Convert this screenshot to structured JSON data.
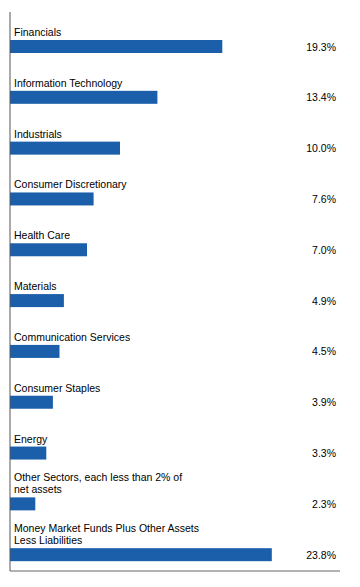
{
  "chart_data": {
    "type": "bar",
    "orientation": "horizontal",
    "categories": [
      "Financials",
      "Information Technology",
      "Industrials",
      "Consumer Discretionary",
      "Health Care",
      "Materials",
      "Communication Services",
      "Consumer Staples",
      "Energy",
      "Other Sectors, each less than 2% of\nnet assets",
      "Money Market Funds Plus Other Assets\nLess Liabilities"
    ],
    "values": [
      19.3,
      13.4,
      10.0,
      7.6,
      7.0,
      4.9,
      4.5,
      3.9,
      3.3,
      2.3,
      23.8
    ],
    "value_labels": [
      "19.3%",
      "13.4%",
      "10.0%",
      "7.6%",
      "7.0%",
      "4.9%",
      "4.5%",
      "3.9%",
      "3.3%",
      "2.3%",
      "23.8%"
    ],
    "color": "#1B5FAA",
    "xlim": [
      0,
      30
    ],
    "data_labels": true,
    "tick_labels": false,
    "grid": false
  }
}
